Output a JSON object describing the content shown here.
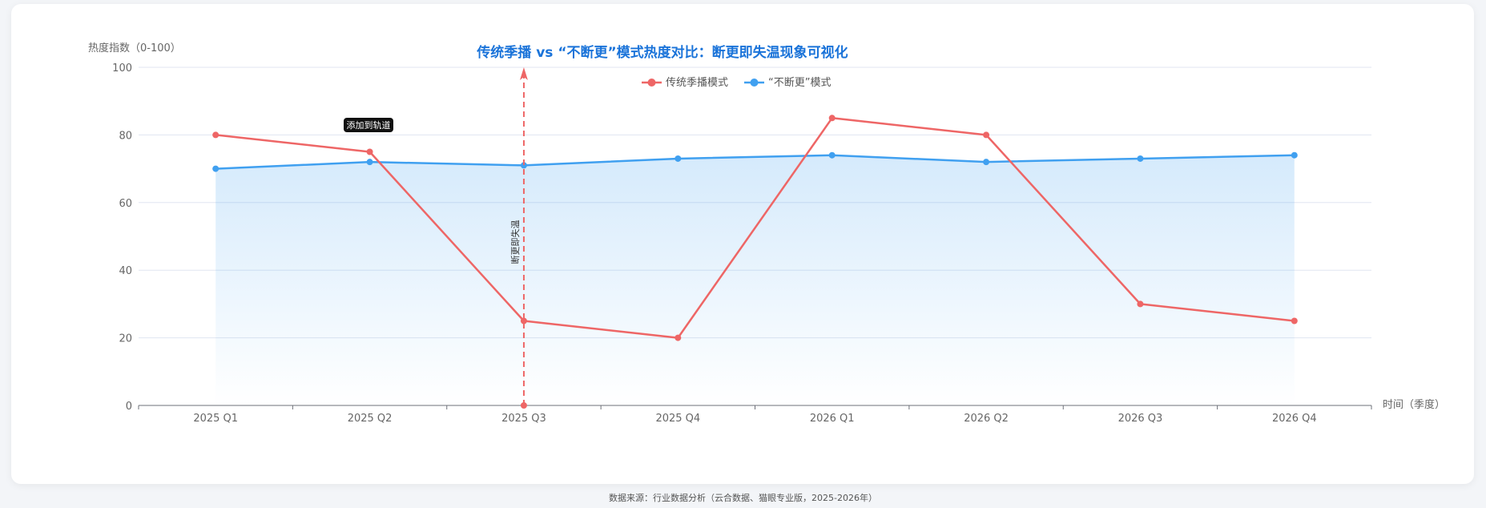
{
  "chart_data": {
    "type": "line",
    "title": "传统季播 vs “不断更”模式热度对比：断更即失温现象可视化",
    "ylabel": "热度指数（0-100）",
    "xlabel": "时间（季度）",
    "ylim": [
      0,
      100
    ],
    "yticks": [
      0,
      20,
      40,
      60,
      80,
      100
    ],
    "grid": true,
    "legend_position": "top-center",
    "categories": [
      "2025 Q1",
      "2025 Q2",
      "2025 Q3",
      "2025 Q4",
      "2026 Q1",
      "2026 Q2",
      "2026 Q3",
      "2026 Q4"
    ],
    "series": [
      {
        "name": "传统季播模式",
        "values": [
          80,
          75,
          25,
          20,
          85,
          80,
          30,
          25
        ],
        "color": "#ee6666",
        "area": false
      },
      {
        "name": "“不断更”模式",
        "values": [
          70,
          72,
          71,
          73,
          74,
          72,
          73,
          74
        ],
        "color": "#40a0f0",
        "area": true
      }
    ],
    "markline": {
      "category": "2025 Q3",
      "label": "断更即失温",
      "color": "#ee6666"
    },
    "tooltip_text": "添加到轨道",
    "title_color": "#1a73d9"
  },
  "footer": "数据来源：行业数据分析（云合数据、猫眼专业版，2025-2026年）"
}
